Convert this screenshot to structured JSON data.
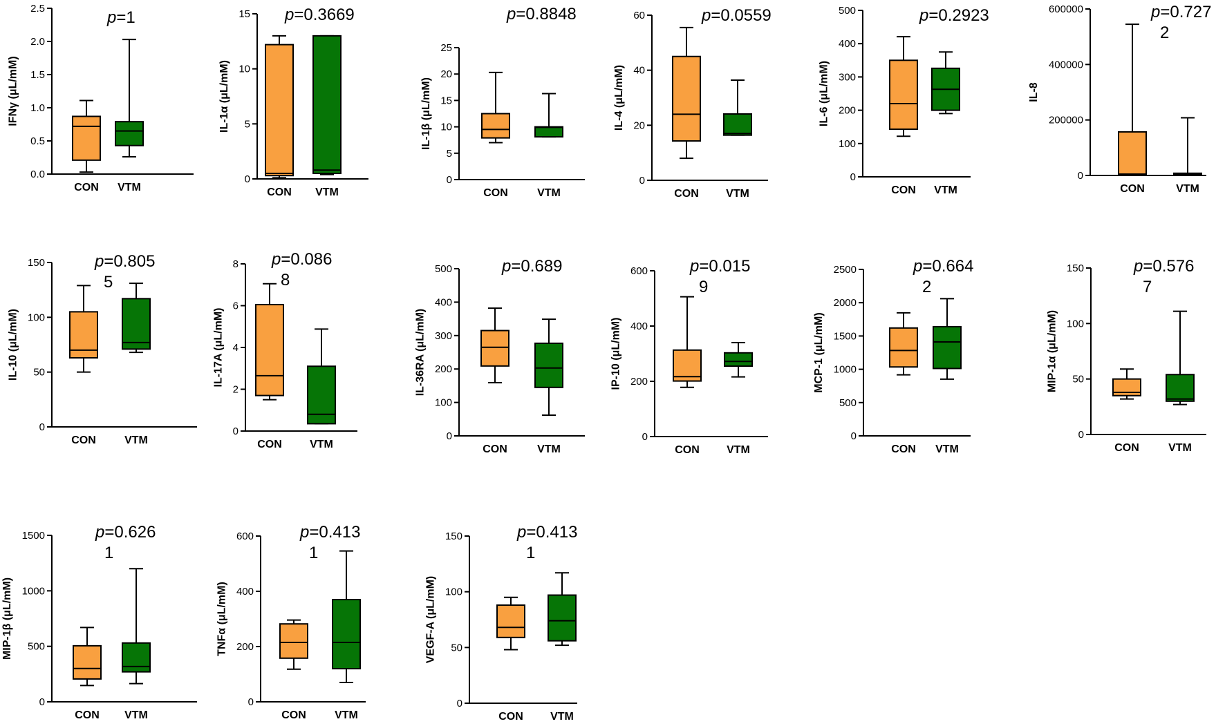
{
  "figure_colors": {
    "con": "#F9A040",
    "vtm": "#067506",
    "line": "#000000"
  },
  "chart_data": [
    {
      "type": "box",
      "id": "ifng",
      "ylabel": "IFNγ (μL/mM)",
      "ylim": [
        0,
        2.5
      ],
      "yticks": [
        "0.0",
        "0.5",
        "1.0",
        "1.5",
        "2.0",
        "2.5"
      ],
      "pvalue": {
        "prefix": "p",
        "line1": "=1",
        "line2": ""
      },
      "categories": [
        "CON",
        "VTM"
      ],
      "series": [
        {
          "name": "CON",
          "min": 0.03,
          "q1": 0.21,
          "median": 0.72,
          "q3": 0.87,
          "max": 1.11
        },
        {
          "name": "VTM",
          "min": 0.26,
          "q1": 0.43,
          "median": 0.65,
          "q3": 0.79,
          "max": 2.03
        }
      ]
    },
    {
      "type": "box",
      "id": "il1a",
      "ylabel": "IL-1α (μL/mM)",
      "ylim": [
        0,
        15
      ],
      "yticks": [
        "0",
        "5",
        "10",
        "15"
      ],
      "pvalue": {
        "prefix": "p",
        "line1": "=0.3669",
        "line2": ""
      },
      "categories": [
        "CON",
        "VTM"
      ],
      "series": [
        {
          "name": "CON",
          "min": 0.1,
          "q1": 0.3,
          "median": 0.5,
          "q3": 12.2,
          "max": 13.0
        },
        {
          "name": "VTM",
          "min": 0.4,
          "q1": 0.5,
          "median": 0.8,
          "q3": 13.0,
          "max": 13.0
        }
      ]
    },
    {
      "type": "box",
      "id": "il1b",
      "ylabel": "IL-1β (μL/mM)",
      "ylim": [
        0,
        25
      ],
      "yticks": [
        "0",
        "5",
        "10",
        "15",
        "20",
        "25"
      ],
      "pvalue": {
        "prefix": "p",
        "line1": "=0.8848",
        "line2": ""
      },
      "categories": [
        "CON",
        "VTM"
      ],
      "series": [
        {
          "name": "CON",
          "min": 7.0,
          "q1": 7.9,
          "median": 9.5,
          "q3": 12.5,
          "max": 20.3
        },
        {
          "name": "VTM",
          "min": 8.1,
          "q1": 8.1,
          "median": 9.9,
          "q3": 10.0,
          "max": 16.3
        }
      ]
    },
    {
      "type": "box",
      "id": "il4",
      "ylabel": "IL-4 (μL/mM)",
      "ylim": [
        0,
        60
      ],
      "yticks": [
        "0",
        "20",
        "40",
        "60"
      ],
      "pvalue": {
        "prefix": "p",
        "line1": "=0.0559",
        "line2": ""
      },
      "categories": [
        "CON",
        "VTM"
      ],
      "series": [
        {
          "name": "CON",
          "min": 8,
          "q1": 14.3,
          "median": 24,
          "q3": 45,
          "max": 55.5
        },
        {
          "name": "VTM",
          "min": 16.4,
          "q1": 16.4,
          "median": 17,
          "q3": 24.1,
          "max": 36.4
        }
      ]
    },
    {
      "type": "box",
      "id": "il6",
      "ylabel": "IL-6 (μL/mM)",
      "ylim": [
        0,
        500
      ],
      "yticks": [
        "0",
        "100",
        "200",
        "300",
        "400",
        "500"
      ],
      "pvalue": {
        "prefix": "p",
        "line1": "=0.2923",
        "line2": ""
      },
      "categories": [
        "CON",
        "VTM"
      ],
      "series": [
        {
          "name": "CON",
          "min": 122,
          "q1": 143,
          "median": 220,
          "q3": 350,
          "max": 421
        },
        {
          "name": "VTM",
          "min": 190,
          "q1": 200,
          "median": 263,
          "q3": 326,
          "max": 375
        }
      ]
    },
    {
      "type": "box",
      "id": "il8",
      "ylabel": "IL-8",
      "ylim": [
        0,
        600000
      ],
      "yticks": [
        "0",
        "200000",
        "400000",
        "600000"
      ],
      "pvalue": {
        "prefix": "p",
        "line1": "=0.727",
        "line2": "2"
      },
      "categories": [
        "CON",
        "VTM"
      ],
      "series": [
        {
          "name": "CON",
          "min": 0,
          "q1": 0,
          "median": 5000,
          "q3": 157000,
          "max": 545000
        },
        {
          "name": "VTM",
          "min": 0,
          "q1": 2000,
          "median": 5000,
          "q3": 8000,
          "max": 208000
        }
      ]
    },
    {
      "type": "box",
      "id": "il10",
      "ylabel": "IL-10 (μL/mM)",
      "ylim": [
        0,
        150
      ],
      "yticks": [
        "0",
        "50",
        "100",
        "150"
      ],
      "pvalue": {
        "prefix": "p",
        "line1": "=0.805",
        "line2": "5"
      },
      "categories": [
        "CON",
        "VTM"
      ],
      "series": [
        {
          "name": "CON",
          "min": 50,
          "q1": 63,
          "median": 70,
          "q3": 105,
          "max": 129
        },
        {
          "name": "VTM",
          "min": 68,
          "q1": 71,
          "median": 77,
          "q3": 117,
          "max": 131
        }
      ]
    },
    {
      "type": "box",
      "id": "il17a",
      "ylabel": "IL-17A (μL/mM)",
      "ylim": [
        0,
        8
      ],
      "yticks": [
        "0",
        "2",
        "4",
        "6",
        "8"
      ],
      "pvalue": {
        "prefix": "p",
        "line1": "=0.086",
        "line2": "8"
      },
      "categories": [
        "CON",
        "VTM"
      ],
      "series": [
        {
          "name": "CON",
          "min": 1.5,
          "q1": 1.7,
          "median": 2.65,
          "q3": 6.05,
          "max": 7.05
        },
        {
          "name": "VTM",
          "min": 0.35,
          "q1": 0.35,
          "median": 0.8,
          "q3": 3.1,
          "max": 4.88
        }
      ]
    },
    {
      "type": "box",
      "id": "il36ra",
      "ylabel": "IL-36RA (μL/mM)",
      "ylim": [
        0,
        500
      ],
      "yticks": [
        "0",
        "100",
        "200",
        "300",
        "400",
        "500"
      ],
      "pvalue": {
        "prefix": "p",
        "line1": "=0.689",
        "line2": ""
      },
      "categories": [
        "CON",
        "VTM"
      ],
      "series": [
        {
          "name": "CON",
          "min": 159,
          "q1": 209,
          "median": 265,
          "q3": 315,
          "max": 382
        },
        {
          "name": "VTM",
          "min": 62,
          "q1": 145,
          "median": 203,
          "q3": 277,
          "max": 349
        }
      ]
    },
    {
      "type": "box",
      "id": "ip10",
      "ylabel": "IP-10 (μL/mM)",
      "ylim": [
        0,
        600
      ],
      "yticks": [
        "0",
        "200",
        "400",
        "600"
      ],
      "pvalue": {
        "prefix": "p",
        "line1": "=0.015",
        "line2": "9"
      },
      "categories": [
        "CON",
        "VTM"
      ],
      "series": [
        {
          "name": "CON",
          "min": 178,
          "q1": 201,
          "median": 217,
          "q3": 313,
          "max": 506
        },
        {
          "name": "VTM",
          "min": 216,
          "q1": 255,
          "median": 272,
          "q3": 303,
          "max": 340
        }
      ]
    },
    {
      "type": "box",
      "id": "mcp1",
      "ylabel": "MCP-1 (μL/mM)",
      "ylim": [
        0,
        2500
      ],
      "yticks": [
        "0",
        "500",
        "1000",
        "1500",
        "2000",
        "2500"
      ],
      "pvalue": {
        "prefix": "p",
        "line1": "=0.664",
        "line2": "2"
      },
      "categories": [
        "CON",
        "VTM"
      ],
      "series": [
        {
          "name": "CON",
          "min": 917,
          "q1": 1035,
          "median": 1282,
          "q3": 1620,
          "max": 1848
        },
        {
          "name": "VTM",
          "min": 852,
          "q1": 1012,
          "median": 1411,
          "q3": 1640,
          "max": 2060
        }
      ]
    },
    {
      "type": "box",
      "id": "mip1a",
      "ylabel": "MIP-1α (μL/mM)",
      "ylim": [
        0,
        150
      ],
      "yticks": [
        "0",
        "50",
        "100",
        "150"
      ],
      "pvalue": {
        "prefix": "p",
        "line1": "=0.576",
        "line2": "7"
      },
      "categories": [
        "CON",
        "VTM"
      ],
      "series": [
        {
          "name": "CON",
          "min": 32,
          "q1": 35,
          "median": 38,
          "q3": 50,
          "max": 59
        },
        {
          "name": "VTM",
          "min": 27,
          "q1": 30,
          "median": 32,
          "q3": 54,
          "max": 111
        }
      ]
    },
    {
      "type": "box",
      "id": "mip1b",
      "ylabel": "MIP-1β (μL/mM)",
      "ylim": [
        0,
        1500
      ],
      "yticks": [
        "0",
        "500",
        "1000",
        "1500"
      ],
      "pvalue": {
        "prefix": "p",
        "line1": "=0.626",
        "line2": "1"
      },
      "categories": [
        "CON",
        "VTM"
      ],
      "series": [
        {
          "name": "CON",
          "min": 147,
          "q1": 206,
          "median": 300,
          "q3": 505,
          "max": 670
        },
        {
          "name": "VTM",
          "min": 164,
          "q1": 270,
          "median": 318,
          "q3": 530,
          "max": 1200
        }
      ]
    },
    {
      "type": "box",
      "id": "tnfa",
      "ylabel": "TNFα (μL/mM)",
      "ylim": [
        0,
        600
      ],
      "yticks": [
        "0",
        "200",
        "400",
        "600"
      ],
      "pvalue": {
        "prefix": "p",
        "line1": "=0.413",
        "line2": "1"
      },
      "categories": [
        "CON",
        "VTM"
      ],
      "series": [
        {
          "name": "CON",
          "min": 118,
          "q1": 158,
          "median": 215,
          "q3": 282,
          "max": 296
        },
        {
          "name": "VTM",
          "min": 70,
          "q1": 120,
          "median": 215,
          "q3": 370,
          "max": 546
        }
      ]
    },
    {
      "type": "box",
      "id": "vegfa",
      "ylabel": "VEGF-A (μL/mM)",
      "ylim": [
        0,
        150
      ],
      "yticks": [
        "0",
        "50",
        "100",
        "150"
      ],
      "pvalue": {
        "prefix": "p",
        "line1": "=0.413",
        "line2": "1"
      },
      "categories": [
        "CON",
        "VTM"
      ],
      "series": [
        {
          "name": "CON",
          "min": 48,
          "q1": 59,
          "median": 68,
          "q3": 88,
          "max": 95
        },
        {
          "name": "VTM",
          "min": 52,
          "q1": 56,
          "median": 74,
          "q3": 97,
          "max": 117
        }
      ]
    }
  ]
}
